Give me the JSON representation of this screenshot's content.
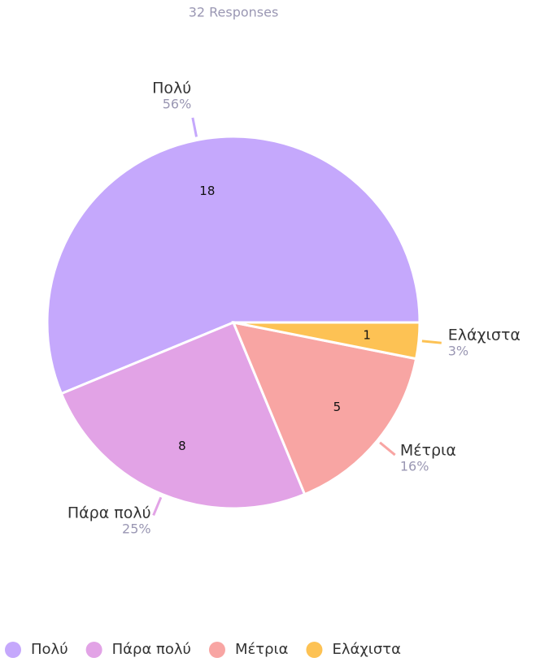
{
  "chart_data": {
    "type": "pie",
    "subtitle": "32 Responses",
    "categories": [
      "Πολύ",
      "Πάρα πολύ",
      "Μέτρια",
      "Ελάχιστα"
    ],
    "values": [
      18,
      8,
      5,
      1
    ],
    "percent_labels": [
      "56%",
      "25%",
      "16%",
      "3%"
    ],
    "colors": [
      "#c5a8fc",
      "#e2a3e6",
      "#f8a5a3",
      "#fdc254"
    ],
    "legend": "bottom"
  }
}
